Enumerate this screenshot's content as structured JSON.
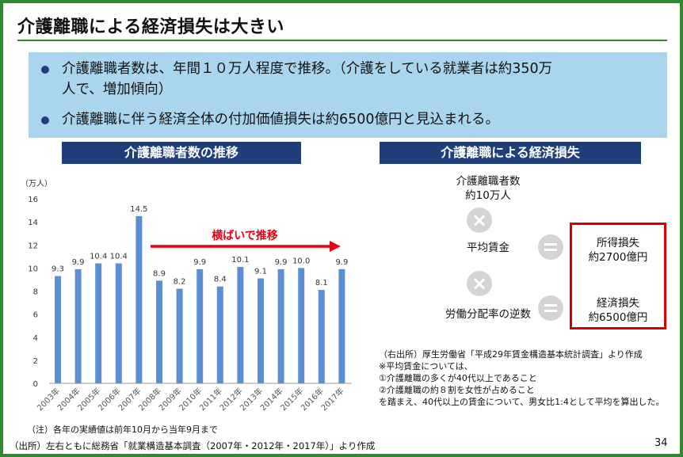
{
  "title": "介護離職による経済損失は大きい",
  "summary": {
    "bullet1_line1": "介護離職者数は、年間１０万人程度で推移。（介護をしている就業者は約350万",
    "bullet1_line2": "人で、増加傾向）",
    "bullet2": "介護離職に伴う経済全体の付加価値損失は約6500億円と見込まれる。"
  },
  "left_panel": {
    "header": "介護離職者数の推移",
    "unit": "（万人）",
    "annotation": "横ばいで推移",
    "note": "（注）各年の実績値は前年10月から当年9月まで"
  },
  "chart_data": {
    "type": "bar",
    "ylabel": "（万人）",
    "ylim": [
      0,
      16
    ],
    "yticks": [
      0,
      2,
      4,
      6,
      8,
      10,
      12,
      14,
      16
    ],
    "categories": [
      "2003年",
      "2004年",
      "2005年",
      "2006年",
      "2007年",
      "2008年",
      "2009年",
      "2010年",
      "2011年",
      "2012年",
      "2013年",
      "2014年",
      "2015年",
      "2016年",
      "2017年"
    ],
    "values": [
      9.3,
      9.9,
      10.4,
      10.4,
      14.5,
      8.9,
      8.2,
      9.9,
      8.4,
      10.1,
      9.1,
      9.9,
      10.0,
      8.1,
      9.9
    ],
    "value_labels": [
      "9.3",
      "9.9",
      "10.4",
      "10.4",
      "14.5",
      "8.9",
      "8.2",
      "9.9",
      "8.4",
      "10.1",
      "9.1",
      "9.9",
      "10.0",
      "8.1",
      "9.9"
    ],
    "bar_color": "#5b8fd4",
    "grid": false
  },
  "right_panel": {
    "header": "介護離職による経済損失",
    "item1_line1": "介護離職者数",
    "item1_line2": "約10万人",
    "item2": "平均賃金",
    "item3": "労働分配率の逆数",
    "result1_line1": "所得損失",
    "result1_line2": "約2700億円",
    "result2_line1": "経済損失",
    "result2_line2": "約6500億円",
    "source_lines": [
      "（右出所）厚生労働省「平成29年賃金構造基本統計調査」より作成",
      "※平均賃金については、",
      "①介護離職の多くが40代以上であること",
      "②介護離職の約８割を女性が占めること",
      "を踏まえ、40代以上の賃金について、男女比1:4として平均を算出した。"
    ]
  },
  "footer": {
    "source": "（出所）左右ともに総務省「就業構造基本調査（2007年・2012年・2017年）」より作成",
    "page": "34"
  },
  "colors": {
    "frame": "#2d8a2d",
    "header_bg": "#203f7a",
    "summary_bg": "#a9d6ee",
    "arrow": "#e60012",
    "highlight_box": "#d40000"
  }
}
